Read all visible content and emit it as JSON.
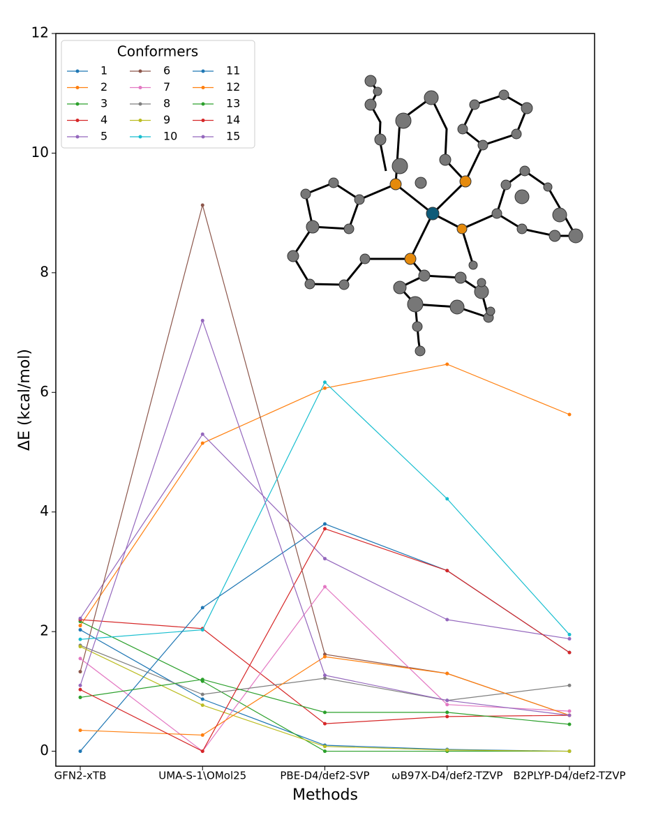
{
  "chart_data": {
    "type": "line",
    "categories": [
      "GFN2-xTB",
      "UMA-S-1\\OMol25",
      "PBE-D4/def2-SVP",
      "ωB97X-D4/def2-TZVP",
      "B2PLYP-D4/def2-TZVP"
    ],
    "xlabel": "Methods",
    "ylabel": "ΔE (kcal/mol)",
    "ylim": [
      -0.25,
      12
    ],
    "yticks": [
      0,
      2,
      4,
      6,
      8,
      10,
      12
    ],
    "legend": {
      "title": "Conformers",
      "loc": "upper left",
      "ncol": 3
    },
    "series": [
      {
        "name": "1",
        "color": "#1f77b4",
        "values": [
          2.03,
          0.87,
          0.1,
          0.03,
          0.0
        ]
      },
      {
        "name": "2",
        "color": "#ff7f0e",
        "values": [
          2.1,
          5.15,
          6.07,
          6.47,
          5.63
        ]
      },
      {
        "name": "3",
        "color": "#2ca02c",
        "values": [
          2.17,
          1.17,
          0.0,
          0.0,
          0.0
        ]
      },
      {
        "name": "4",
        "color": "#d62728",
        "values": [
          2.2,
          2.05,
          0.46,
          0.58,
          0.6
        ]
      },
      {
        "name": "5",
        "color": "#9467bd",
        "values": [
          2.22,
          5.3,
          3.22,
          2.2,
          1.88
        ]
      },
      {
        "name": "6",
        "color": "#8c564b",
        "values": [
          1.33,
          9.13,
          1.62,
          1.3,
          0.6
        ]
      },
      {
        "name": "7",
        "color": "#e377c2",
        "values": [
          1.55,
          0.0,
          2.75,
          0.78,
          0.67
        ]
      },
      {
        "name": "8",
        "color": "#7f7f7f",
        "values": [
          1.77,
          0.95,
          1.22,
          0.85,
          1.1
        ]
      },
      {
        "name": "9",
        "color": "#bcbd22",
        "values": [
          1.75,
          0.77,
          0.08,
          0.02,
          0.0
        ]
      },
      {
        "name": "10",
        "color": "#17becf",
        "values": [
          1.87,
          2.03,
          6.17,
          4.22,
          1.95
        ]
      },
      {
        "name": "11",
        "color": "#1f77b4",
        "values": [
          0.0,
          2.4,
          3.8,
          3.02,
          1.65
        ]
      },
      {
        "name": "12",
        "color": "#ff7f0e",
        "values": [
          0.35,
          0.27,
          1.58,
          1.3,
          0.6
        ]
      },
      {
        "name": "13",
        "color": "#2ca02c",
        "values": [
          0.9,
          1.2,
          0.65,
          0.65,
          0.45
        ]
      },
      {
        "name": "14",
        "color": "#d62728",
        "values": [
          1.03,
          0.0,
          3.72,
          3.02,
          1.65
        ]
      },
      {
        "name": "15",
        "color": "#9467bd",
        "values": [
          1.1,
          7.2,
          1.27,
          0.85,
          0.6
        ]
      }
    ]
  }
}
